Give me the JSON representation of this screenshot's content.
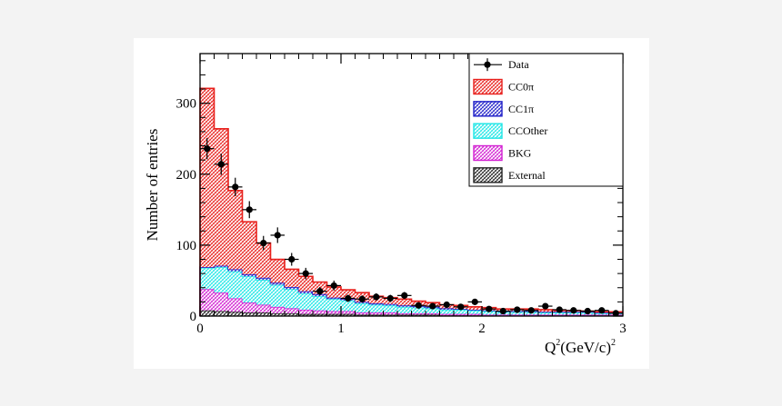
{
  "chart_data": {
    "type": "bar",
    "title": "",
    "xlabel": "Q",
    "xlabel_sup": "2",
    "xlabel_unit": "(GeV/c)",
    "xlabel_unit_sup": "2",
    "ylabel": "Number of entries",
    "xlim": [
      0,
      3
    ],
    "ylim": [
      0,
      370
    ],
    "xticks": [
      "0",
      "1",
      "2",
      "3"
    ],
    "yticks": [
      "0",
      "100",
      "200",
      "300"
    ],
    "grid": false,
    "stacked": true,
    "bin_width": 0.1,
    "bin_edges_start": 0,
    "legend_position": "top-right",
    "legend": [
      {
        "label": "Data",
        "kind": "marker"
      },
      {
        "label": "CC0π",
        "kind": "fill",
        "color": "#e8201c"
      },
      {
        "label": "CC1π",
        "kind": "fill",
        "color": "#1f1fc8"
      },
      {
        "label": "CCOther",
        "kind": "fill",
        "color": "#1fe6e6"
      },
      {
        "label": "BKG",
        "kind": "fill",
        "color": "#d21fd2"
      },
      {
        "label": "External",
        "kind": "fill",
        "color": "#222222"
      }
    ],
    "series": [
      {
        "name": "External",
        "color": "#222222",
        "values": [
          8,
          7,
          6,
          5,
          5,
          4,
          4,
          3,
          3,
          3,
          3,
          2,
          2,
          2,
          2,
          2,
          2,
          1,
          1,
          1,
          1,
          1,
          1,
          1,
          1,
          1,
          1,
          1,
          1,
          1
        ]
      },
      {
        "name": "BKG",
        "color": "#d21fd2",
        "values": [
          30,
          26,
          19,
          14,
          11,
          9,
          7,
          6,
          5,
          4,
          4,
          3,
          3,
          3,
          2,
          2,
          2,
          2,
          2,
          2,
          1,
          1,
          1,
          1,
          1,
          1,
          1,
          1,
          1,
          1
        ]
      },
      {
        "name": "CCOther",
        "color": "#1fe6e6",
        "values": [
          30,
          36,
          38,
          37,
          35,
          31,
          27,
          23,
          20,
          17,
          15,
          13,
          11,
          10,
          9,
          8,
          7,
          6,
          6,
          5,
          5,
          4,
          4,
          4,
          3,
          3,
          3,
          3,
          2,
          2
        ]
      },
      {
        "name": "CC1π",
        "color": "#1f1fc8",
        "values": [
          1,
          2,
          3,
          3,
          3,
          3,
          3,
          3,
          3,
          2,
          2,
          2,
          2,
          2,
          2,
          2,
          2,
          2,
          1,
          1,
          1,
          1,
          1,
          1,
          1,
          1,
          1,
          1,
          1,
          1
        ]
      },
      {
        "name": "CC0π",
        "color": "#e8201c",
        "values": [
          252,
          193,
          111,
          74,
          49,
          33,
          25,
          21,
          17,
          15,
          13,
          13,
          10,
          9,
          9,
          7,
          6,
          5,
          5,
          4,
          4,
          3,
          3,
          3,
          3,
          2,
          2,
          1,
          1,
          1
        ]
      }
    ],
    "data_points": {
      "name": "Data",
      "x": [
        0.05,
        0.15,
        0.25,
        0.35,
        0.45,
        0.55,
        0.65,
        0.75,
        0.85,
        0.95,
        1.05,
        1.15,
        1.25,
        1.35,
        1.45,
        1.55,
        1.65,
        1.75,
        1.85,
        1.95,
        2.05,
        2.15,
        2.25,
        2.35,
        2.45,
        2.55,
        2.65,
        2.75,
        2.85,
        2.95
      ],
      "y": [
        236,
        214,
        182,
        150,
        103,
        114,
        80,
        60,
        35,
        43,
        25,
        24,
        27,
        25,
        29,
        15,
        14,
        16,
        13,
        20,
        10,
        7,
        9,
        8,
        14,
        9,
        8,
        7,
        8,
        4
      ],
      "yerr": [
        15,
        15,
        13,
        12,
        10,
        11,
        9,
        8,
        6,
        7,
        5,
        5,
        5,
        5,
        5,
        4,
        4,
        4,
        4,
        4,
        3,
        3,
        3,
        3,
        4,
        3,
        3,
        3,
        3,
        2
      ]
    }
  }
}
